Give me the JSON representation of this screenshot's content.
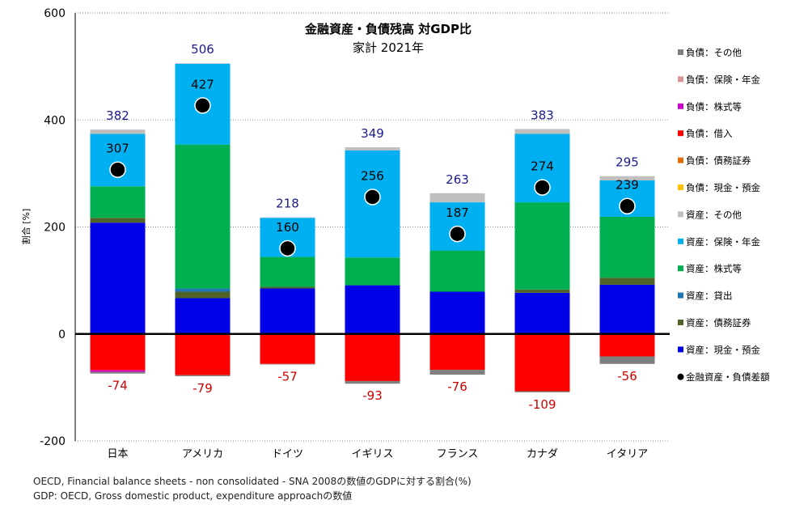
{
  "chart_data": {
    "type": "bar",
    "stacked": true,
    "title": "金融資産・負債残高 対GDP比",
    "subtitle": "家計 2021年",
    "ylabel": "割合 [%]",
    "ylim": [
      -200,
      600
    ],
    "yticks": [
      -200,
      0,
      200,
      400,
      600
    ],
    "grid": true,
    "legend_position": "right",
    "categories": [
      "日本",
      "アメリカ",
      "ドイツ",
      "イギリス",
      "フランス",
      "カナダ",
      "イタリア"
    ],
    "asset_totals": [
      382,
      506,
      218,
      349,
      263,
      383,
      295
    ],
    "liability_totals": [
      -74,
      -79,
      -57,
      -93,
      -76,
      -109,
      -56
    ],
    "net_values": [
      307,
      427,
      160,
      256,
      187,
      274,
      239
    ],
    "series": [
      {
        "name": "資産：現金・預金",
        "color": "#0000e6",
        "values": [
          208,
          67,
          85,
          91,
          79,
          77,
          92
        ]
      },
      {
        "name": "資産：債務証券",
        "color": "#4f6228",
        "values": [
          9,
          12,
          3,
          0,
          0,
          6,
          13
        ]
      },
      {
        "name": "資産：貸出",
        "color": "#1f77b4",
        "values": [
          0,
          6,
          0,
          0,
          0,
          0,
          0
        ]
      },
      {
        "name": "資産：株式等",
        "color": "#00b050",
        "values": [
          59,
          269,
          56,
          52,
          77,
          163,
          114
        ]
      },
      {
        "name": "資産：保険・年金",
        "color": "#00b0f0",
        "values": [
          98,
          151,
          73,
          200,
          90,
          128,
          68
        ]
      },
      {
        "name": "資産：その他",
        "color": "#bfbfbf",
        "values": [
          8,
          1,
          1,
          6,
          17,
          9,
          8
        ]
      },
      {
        "name": "負債：現金・預金",
        "color": "#ffc000",
        "values": [
          0,
          0,
          0,
          0,
          0,
          0,
          0
        ]
      },
      {
        "name": "負債：債務証券",
        "color": "#e36c09",
        "values": [
          0,
          0,
          0,
          0,
          0,
          0,
          0
        ]
      },
      {
        "name": "負債：借入",
        "color": "#ff0000",
        "values": [
          -68,
          -77,
          -56,
          -88,
          -67,
          -107,
          -42
        ]
      },
      {
        "name": "負債：株式等",
        "color": "#cc00cc",
        "values": [
          -3,
          0,
          0,
          0,
          0,
          0,
          0
        ]
      },
      {
        "name": "負債：保険・年金",
        "color": "#d99694",
        "values": [
          0,
          0,
          0,
          0,
          0,
          0,
          0
        ]
      },
      {
        "name": "負債：その他",
        "color": "#7f7f7f",
        "values": [
          -3,
          -2,
          -1,
          -5,
          -9,
          -2,
          -14
        ]
      }
    ],
    "net_series_name": "金融資産・負債差額",
    "colors": {
      "asset_label": "#1a1a8c",
      "liability_label": "#cc0000",
      "net_marker": "#000000"
    }
  },
  "notes": [
    "OECD, Financial balance sheets - non consolidated - SNA 2008の数値のGDPに対する割合(%)",
    "GDP: OECD, Gross domestic product, expenditure approachの数値"
  ]
}
